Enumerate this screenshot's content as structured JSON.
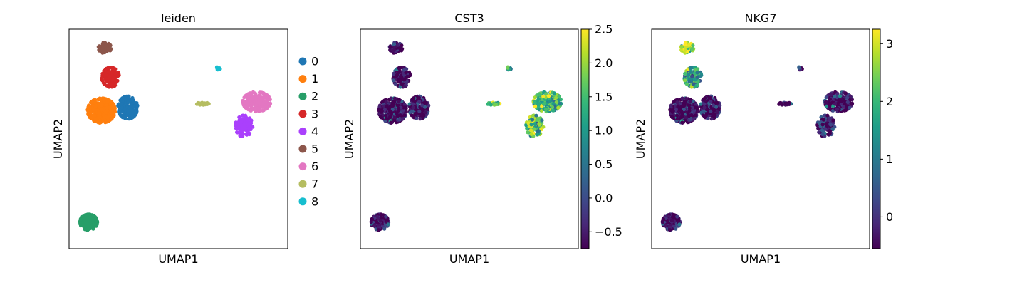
{
  "chart_data": [
    {
      "type": "scatter",
      "title": "leiden",
      "xlabel": "UMAP1",
      "ylabel": "UMAP2",
      "color_mode": "categorical",
      "legend_position": "right",
      "legend": [
        "0",
        "1",
        "2",
        "3",
        "4",
        "5",
        "6",
        "7",
        "8"
      ],
      "palette": [
        "#1f77b4",
        "#ff7f0e",
        "#279e68",
        "#d62728",
        "#aa40fc",
        "#8c564b",
        "#e377c2",
        "#b5bd61",
        "#17becf"
      ],
      "clusters": [
        {
          "label": "0",
          "center": [
            4.6,
            13.2
          ],
          "spread": [
            0.85,
            1.15
          ],
          "n": 170
        },
        {
          "label": "1",
          "center": [
            2.3,
            12.9
          ],
          "spread": [
            1.2,
            1.25
          ],
          "n": 340
        },
        {
          "label": "2",
          "center": [
            1.2,
            1.5
          ],
          "spread": [
            0.75,
            0.8
          ],
          "n": 200
        },
        {
          "label": "3",
          "center": [
            3.1,
            16.3
          ],
          "spread": [
            0.75,
            1.0
          ],
          "n": 130
        },
        {
          "label": "4",
          "center": [
            14.7,
            11.3
          ],
          "spread": [
            0.75,
            1.1
          ],
          "n": 110
        },
        {
          "label": "5",
          "center": [
            2.6,
            19.3
          ],
          "spread": [
            0.55,
            0.55
          ],
          "n": 55
        },
        {
          "label": "6",
          "center": [
            15.8,
            13.8
          ],
          "spread": [
            1.2,
            1.0
          ],
          "n": 220
        },
        {
          "label": "7",
          "center": [
            11.1,
            13.6
          ],
          "spread": [
            0.55,
            0.12
          ],
          "n": 28
        },
        {
          "label": "8",
          "center": [
            12.5,
            17.2
          ],
          "spread": [
            0.18,
            0.3
          ],
          "n": 9
        }
      ]
    },
    {
      "type": "scatter",
      "title": "CST3",
      "xlabel": "UMAP1",
      "ylabel": "UMAP2",
      "color_mode": "continuous",
      "colormap": [
        "#440154",
        "#482878",
        "#3e4989",
        "#31688e",
        "#26828e",
        "#1f9e89",
        "#35b779",
        "#6ece58",
        "#b5de2b",
        "#fde725"
      ],
      "colorbar": {
        "vmin": -0.75,
        "vmax": 2.5,
        "ticks": [
          "2.5",
          "2.0",
          "1.5",
          "1.0",
          "0.5",
          "0.0",
          "−0.5"
        ],
        "tick_values": [
          2.5,
          2.0,
          1.5,
          1.0,
          0.5,
          0.0,
          -0.5
        ]
      },
      "cluster_values": {
        "0": -0.7,
        "1": -0.7,
        "2": -0.65,
        "3": -0.7,
        "4": 1.55,
        "5": -0.7,
        "6": 1.45,
        "7": 1.85,
        "8": 0.9
      }
    },
    {
      "type": "scatter",
      "title": "NKG7",
      "xlabel": "UMAP1",
      "ylabel": "UMAP2",
      "color_mode": "continuous",
      "colormap": [
        "#440154",
        "#482878",
        "#3e4989",
        "#31688e",
        "#26828e",
        "#1f9e89",
        "#35b779",
        "#6ece58",
        "#b5de2b",
        "#fde725"
      ],
      "colorbar": {
        "vmin": -0.55,
        "vmax": 3.25,
        "ticks": [
          "3",
          "2",
          "1",
          "0"
        ],
        "tick_values": [
          3,
          2,
          1,
          0
        ]
      },
      "cluster_values": {
        "0": -0.45,
        "1": -0.45,
        "2": -0.45,
        "3": 1.6,
        "4": -0.3,
        "5": 2.9,
        "6": -0.4,
        "7": -0.45,
        "8": -0.45
      }
    }
  ]
}
